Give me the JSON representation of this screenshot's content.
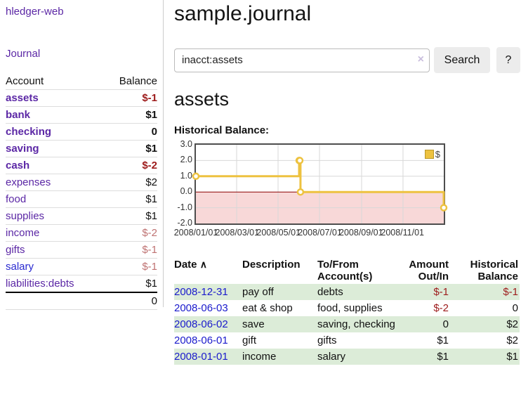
{
  "colors": {
    "accent_purple": "#5b27a5",
    "link_blue": "#1a1acc",
    "negative_strong": "#9d1b1b",
    "negative_soft": "#bf7272",
    "row_stripe_green": "#dcecd8"
  },
  "sidebar": {
    "brand": "hledger-web",
    "journal_link": "Journal",
    "accounts": {
      "col_account": "Account",
      "col_balance": "Balance",
      "rows": [
        {
          "name": "assets",
          "balance": "$-1"
        },
        {
          "name": "bank",
          "balance": "$1"
        },
        {
          "name": "checking",
          "balance": "0"
        },
        {
          "name": "saving",
          "balance": "$1"
        },
        {
          "name": "cash",
          "balance": "$-2"
        },
        {
          "name": "expenses",
          "balance": "$2"
        },
        {
          "name": "food",
          "balance": "$1"
        },
        {
          "name": "supplies",
          "balance": "$1"
        },
        {
          "name": "income",
          "balance": "$-2"
        },
        {
          "name": "gifts",
          "balance": "$-1"
        },
        {
          "name": "salary",
          "balance": "$-1"
        },
        {
          "name": "liabilities:debts",
          "balance": "$1"
        }
      ],
      "total": "0"
    }
  },
  "main": {
    "title": "sample.journal",
    "search": {
      "value": "inacct:assets",
      "clear_icon": "×",
      "button": "Search",
      "help": "?"
    },
    "account_heading": "assets",
    "chart_label": "Historical Balance:"
  },
  "chart_data": {
    "type": "line",
    "title": "Historical Balance:",
    "series": [
      {
        "name": "$",
        "color": "#edc240",
        "step": true,
        "points": [
          [
            "2008-01-01",
            1
          ],
          [
            "2008-06-01",
            2
          ],
          [
            "2008-06-02",
            2
          ],
          [
            "2008-06-03",
            0
          ],
          [
            "2008-12-31",
            -1
          ]
        ]
      }
    ],
    "x_range": [
      "2008-01-01",
      "2008-12-31"
    ],
    "ylim": [
      -2,
      3
    ],
    "x_ticks": [
      "2008-01-01",
      "2008-03-01",
      "2008-05-01",
      "2008-07-01",
      "2008-09-01",
      "2008-11-01"
    ],
    "x_tick_labels": [
      "2008/01/01",
      "2008/03/01",
      "2008/05/01",
      "2008/07/01",
      "2008/09/01",
      "2008/11/01"
    ],
    "y_ticks": [
      3,
      2,
      1,
      0,
      -1,
      -2
    ],
    "y_tick_labels": [
      "3.0",
      "2.0",
      "1.0",
      "0.0",
      "-1.0",
      "-2.0"
    ],
    "grid": true,
    "legend_position": "top-right",
    "legend_label": "$",
    "zero_line": true,
    "negative_region_shaded": true,
    "chart_colors": {
      "negative_region": "#f8d8d8",
      "zero_line": "#8b0000",
      "grid": "#d8d8d8"
    }
  },
  "register": {
    "headers": {
      "date": "Date",
      "sort_icon": "∧",
      "description": "Description",
      "accounts": "To/From Account(s)",
      "amount": "Amount Out/In",
      "balance": "Historical Balance"
    },
    "rows": [
      {
        "date": "2008-12-31",
        "description": "pay off",
        "accounts": "debts",
        "amount": "$-1",
        "balance": "$-1"
      },
      {
        "date": "2008-06-03",
        "description": "eat & shop",
        "accounts": "food, supplies",
        "amount": "$-2",
        "balance": "0"
      },
      {
        "date": "2008-06-02",
        "description": "save",
        "accounts": "saving, checking",
        "amount": "0",
        "balance": "$2"
      },
      {
        "date": "2008-06-01",
        "description": "gift",
        "accounts": "gifts",
        "amount": "$1",
        "balance": "$2"
      },
      {
        "date": "2008-01-01",
        "description": "income",
        "accounts": "salary",
        "amount": "$1",
        "balance": "$1"
      }
    ]
  }
}
